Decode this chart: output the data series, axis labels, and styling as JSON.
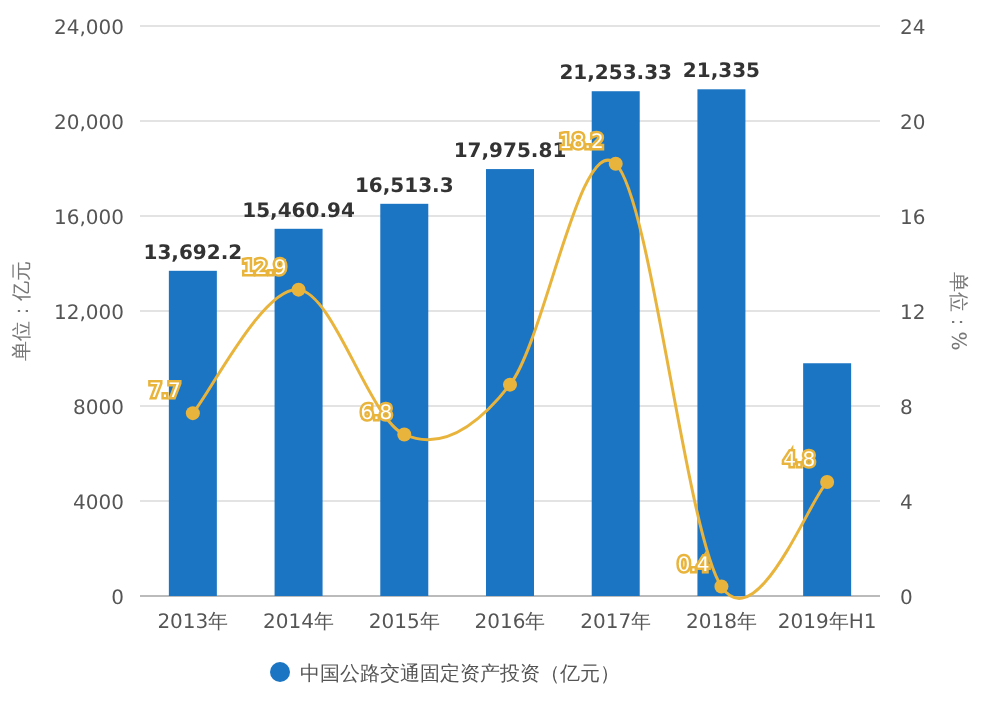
{
  "chart_data": {
    "type": "bar",
    "categories": [
      "2013年",
      "2014年",
      "2015年",
      "2016年",
      "2017年",
      "2018年",
      "2019年H1"
    ],
    "ylabel": "单位：亿元",
    "y2label": "单位：%",
    "ylim": [
      0,
      24000
    ],
    "yticks": [
      {
        "value": 0,
        "label": "0"
      },
      {
        "value": 4000,
        "label": "4000"
      },
      {
        "value": 8000,
        "label": "8000"
      },
      {
        "value": 12000,
        "label": "12,000"
      },
      {
        "value": 16000,
        "label": "16,000"
      },
      {
        "value": 20000,
        "label": "20,000"
      },
      {
        "value": 24000,
        "label": "24,000"
      }
    ],
    "y2lim": [
      0,
      24
    ],
    "y2ticks": [
      0,
      4,
      8,
      12,
      16,
      20,
      24
    ],
    "grid": "y",
    "legend": "bottom",
    "series": [
      {
        "name": "中国公路交通固定资产投资（亿元）",
        "color": "#1c75c3",
        "values": [
          13692.2,
          15460.94,
          16513.3,
          17975.81,
          21253.33,
          21335,
          9800
        ],
        "value_labels": [
          "13,692.2",
          "15,460.94",
          "16,513.3",
          "17,975.81",
          "21,253.33",
          "21,335",
          null
        ]
      },
      {
        "type": "line",
        "axis": "y2",
        "color": "#e9b43c",
        "marker": "circle",
        "values": [
          7.7,
          12.9,
          6.8,
          8.9,
          18.2,
          0.4,
          4.8
        ],
        "value_labels": [
          "7.7",
          "12.9",
          "6.8",
          null,
          "18.2",
          "0.4",
          "4.8"
        ]
      }
    ]
  }
}
